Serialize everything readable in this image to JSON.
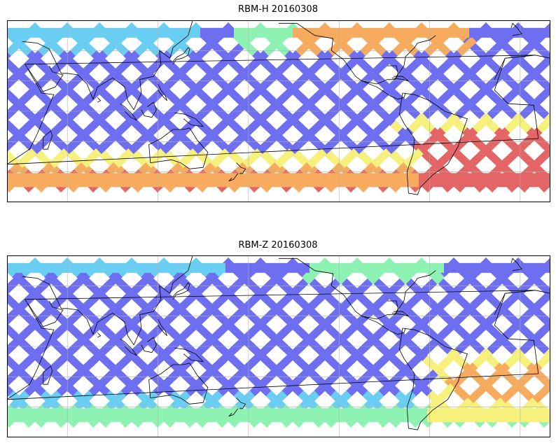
{
  "panels": [
    {
      "title": "RBM-H 20160308",
      "colormap": [
        "#5b5bf0",
        "#56c8f2",
        "#7ff2a8",
        "#f4f06a",
        "#f5a04a",
        "#e05050"
      ],
      "hot_zones": "north-atlantic, southern-ocean, south-atlantic"
    },
    {
      "title": "RBM-Z 20160308",
      "colormap": [
        "#5b5bf0",
        "#56c8f2",
        "#7ff2a8",
        "#f4f06a",
        "#f5a04a",
        "#e05050"
      ],
      "hot_zones": "south-atlantic, southern-ocean-edge"
    }
  ],
  "map": {
    "projection": "PlateCarree",
    "lon_range": [
      20,
      380
    ],
    "lat_range": [
      -60,
      60
    ],
    "gridline_lons": [
      60,
      120,
      180,
      240,
      300,
      360
    ],
    "gridline_lats": [
      -40,
      -20,
      0,
      20,
      40
    ],
    "gridlines": true,
    "coastlines": true,
    "colors": {
      "frame": "#000000",
      "grid": "#b0b0b0",
      "coast": "#000000"
    }
  }
}
